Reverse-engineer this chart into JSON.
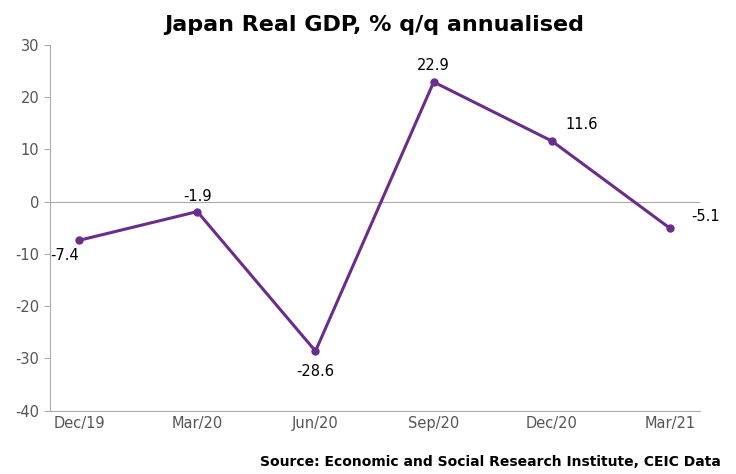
{
  "title": "Japan Real GDP, % q/q annualised",
  "categories": [
    "Dec/19",
    "Mar/20",
    "Jun/20",
    "Sep/20",
    "Dec/20",
    "Mar/21"
  ],
  "values": [
    -7.4,
    -1.9,
    -28.6,
    22.9,
    11.6,
    -5.1
  ],
  "labels": [
    "-7.4",
    "-1.9",
    "-28.6",
    "22.9",
    "11.6",
    "-5.1"
  ],
  "line_color": "#6B2D8B",
  "marker": "o",
  "marker_size": 5,
  "line_width": 2.2,
  "ylim": [
    -40,
    30
  ],
  "yticks": [
    -40,
    -30,
    -20,
    -10,
    0,
    10,
    20,
    30
  ],
  "source_text": "Source: Economic and Social Research Institute, CEIC Data",
  "background_color": "#ffffff",
  "title_fontsize": 16,
  "label_fontsize": 10.5,
  "tick_fontsize": 10.5,
  "source_fontsize": 10,
  "label_offsets_x": [
    0,
    0,
    0,
    0,
    0.25,
    0.18
  ],
  "label_offsets_y": [
    -1.5,
    1.5,
    -2.5,
    1.8,
    1.8,
    0.8
  ],
  "label_ha": [
    "right",
    "center",
    "center",
    "center",
    "center",
    "left"
  ],
  "label_va": [
    "top",
    "bottom",
    "top",
    "bottom",
    "bottom",
    "bottom"
  ]
}
